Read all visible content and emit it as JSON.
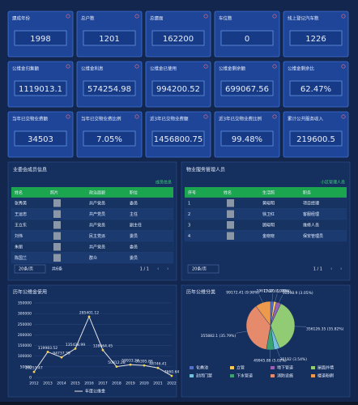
{
  "cards": [
    [
      {
        "label": "建成年份",
        "value": 1998
      },
      {
        "label": "总户数",
        "value": 1201
      },
      {
        "label": "总建面",
        "value": 162200
      },
      {
        "label": "车位数",
        "value": 0
      },
      {
        "label": "线上登记汽车数",
        "value": 1226
      }
    ],
    [
      {
        "label": "公维金归集额",
        "value": 1119013.1
      },
      {
        "label": "公维金利息",
        "value": 574254.98
      },
      {
        "label": "公维金已使用",
        "value": 994200.52
      },
      {
        "label": "公维金剩余额",
        "value": 699067.56
      },
      {
        "label": "公维金剩余比",
        "value": "62.47%"
      }
    ],
    [
      {
        "label": "当年已交物业费额",
        "value": 34503
      },
      {
        "label": "当年已交物业费比例",
        "value": "7.05%"
      },
      {
        "label": "近3年已交物业费额",
        "value": 1456800.75
      },
      {
        "label": "近3年已交物业费比例",
        "value": "99.48%"
      },
      {
        "label": "累计公共服务收入",
        "value": 219600.5
      }
    ]
  ],
  "tables": [
    {
      "title": "业委会成员信息",
      "link": "成员信息",
      "headers": [
        "姓名",
        "照片",
        "政治面貌",
        "职位"
      ],
      "rows": [
        [
          "张秀英",
          "共产党员",
          "委员"
        ],
        [
          "王运忠",
          "共产党员",
          "主任"
        ],
        [
          "王立东",
          "共产党员",
          "副主任"
        ],
        [
          "刘伟",
          "民主党派",
          "委员"
        ],
        [
          "朱丽",
          "共产党员",
          "委员"
        ],
        [
          "陈国兰",
          "群众",
          "委员"
        ]
      ],
      "page_size": "20条/页",
      "total": "共6条",
      "pager": "1 / 1"
    },
    {
      "title": "物业服务管理人员",
      "link": "小区管理人员",
      "headers": [
        "序号",
        "姓名",
        "生活照",
        "职务"
      ],
      "rows": [
        [
          "1",
          "黄晓明",
          "项目经理"
        ],
        [
          "2",
          "徐卫红",
          "客服经理"
        ],
        [
          "3",
          "顾晓明",
          "维修人员"
        ],
        [
          "4",
          "金晓晓",
          "保安管理员"
        ]
      ],
      "page_size": "20条/页",
      "pager": "1 / 1"
    }
  ],
  "chart_data": [
    {
      "type": "line",
      "title": "历年公维金使用",
      "legend": "年度公维金",
      "color": "#e6e6e6",
      "point_color": "#f5d24a",
      "categories": [
        "2012",
        "2013",
        "2014",
        "2015",
        "2016",
        "2017",
        "2018",
        "2019",
        "2020",
        "2021",
        "2022"
      ],
      "values": [
        26253.47,
        119983.52,
        94737.39,
        135428.99,
        285401.12,
        128664.45,
        50812.28,
        59933.24,
        56395.86,
        44746.41,
        7660.64
      ],
      "ylim": [
        0,
        350000
      ],
      "yticks": [
        0,
        50000,
        100000,
        150000,
        200000,
        250000,
        300000,
        350000
      ],
      "grid": true
    },
    {
      "type": "pie",
      "title": "历年公维分类",
      "categories": [
        "化粪池",
        "立管",
        "地下管道",
        "屋面外墙",
        "封闭门禁",
        "下水管道",
        "消防设施",
        "楼道粉刷"
      ],
      "values": [
        19673.27,
        17681,
        30298.9,
        356126.35,
        35182,
        49945.88,
        355882.1,
        99172.41
      ],
      "value_labels": [
        "19673.27 (1.98%)",
        "17681 (1.78%)",
        "30298.9 (3.05%)",
        "356126.35 (35.82%)",
        "35182 (3.54%)",
        "49945.88 (5.02%)",
        "355882.1 (35.79%)",
        "99172.41 (9.98%)"
      ],
      "colors": [
        "#5470c6",
        "#fac858",
        "#9a60b4",
        "#91cc75",
        "#73c0de",
        "#3ba272",
        "#e58a6b",
        "#ee9a4d"
      ]
    }
  ]
}
